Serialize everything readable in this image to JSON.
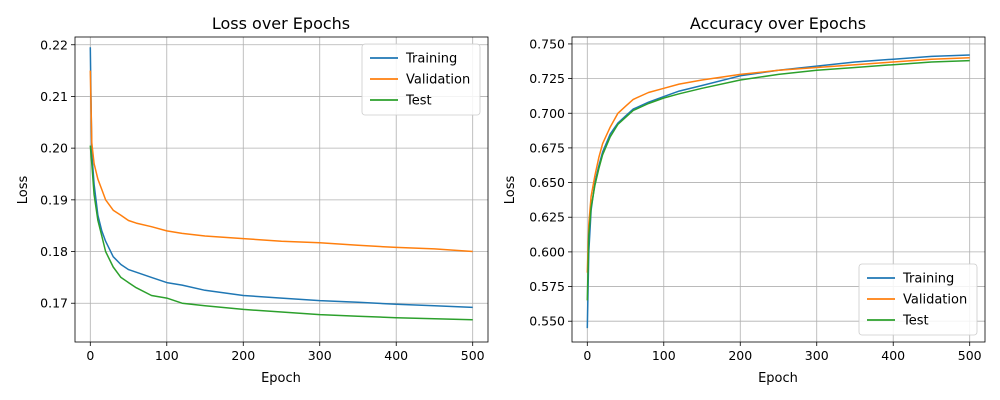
{
  "chart_data": [
    {
      "type": "line",
      "title": "Loss over Epochs",
      "xlabel": "Epoch",
      "ylabel": "Loss",
      "xlim": [
        -20,
        520
      ],
      "ylim": [
        0.1625,
        0.2215
      ],
      "xticks": [
        0,
        100,
        200,
        300,
        400,
        500
      ],
      "yticks": [
        0.17,
        0.18,
        0.19,
        0.2,
        0.21,
        0.22
      ],
      "ytick_labels": [
        "0.17",
        "0.18",
        "0.19",
        "0.20",
        "0.21",
        "0.22"
      ],
      "grid": true,
      "legend_position": "top-right",
      "series": [
        {
          "name": "Training",
          "color": "#1f77b4",
          "x": [
            0,
            2,
            5,
            10,
            15,
            20,
            30,
            40,
            50,
            60,
            80,
            100,
            120,
            150,
            200,
            250,
            300,
            350,
            400,
            450,
            500
          ],
          "values": [
            0.2195,
            0.199,
            0.193,
            0.187,
            0.184,
            0.182,
            0.179,
            0.1775,
            0.1765,
            0.176,
            0.175,
            0.174,
            0.1735,
            0.1725,
            0.1715,
            0.171,
            0.1705,
            0.1702,
            0.1698,
            0.1695,
            0.1692
          ]
        },
        {
          "name": "Validation",
          "color": "#ff7f0e",
          "x": [
            0,
            2,
            5,
            10,
            15,
            20,
            30,
            40,
            50,
            60,
            80,
            100,
            120,
            150,
            200,
            250,
            300,
            350,
            400,
            450,
            500
          ],
          "values": [
            0.215,
            0.201,
            0.197,
            0.194,
            0.192,
            0.19,
            0.188,
            0.187,
            0.186,
            0.1855,
            0.1848,
            0.184,
            0.1835,
            0.183,
            0.1825,
            0.182,
            0.1817,
            0.1812,
            0.1808,
            0.1805,
            0.18
          ]
        },
        {
          "name": "Test",
          "color": "#2ca02c",
          "x": [
            0,
            2,
            5,
            10,
            15,
            20,
            30,
            40,
            50,
            60,
            80,
            100,
            120,
            150,
            200,
            250,
            300,
            350,
            400,
            450,
            500
          ],
          "values": [
            0.2005,
            0.197,
            0.191,
            0.186,
            0.183,
            0.18,
            0.177,
            0.175,
            0.174,
            0.173,
            0.1715,
            0.171,
            0.17,
            0.1695,
            0.1688,
            0.1683,
            0.1678,
            0.1675,
            0.1672,
            0.167,
            0.1668
          ]
        }
      ]
    },
    {
      "type": "line",
      "title": "Accuracy over Epochs",
      "xlabel": "Epoch",
      "ylabel": "Loss",
      "xlim": [
        -20,
        520
      ],
      "ylim": [
        0.535,
        0.755
      ],
      "xticks": [
        0,
        100,
        200,
        300,
        400,
        500
      ],
      "yticks": [
        0.55,
        0.575,
        0.6,
        0.625,
        0.65,
        0.675,
        0.7,
        0.725,
        0.75
      ],
      "ytick_labels": [
        "0.550",
        "0.575",
        "0.600",
        "0.625",
        "0.650",
        "0.675",
        "0.700",
        "0.725",
        "0.750"
      ],
      "grid": true,
      "legend_position": "bottom-right",
      "series": [
        {
          "name": "Training",
          "color": "#1f77b4",
          "x": [
            0,
            2,
            5,
            10,
            15,
            20,
            30,
            40,
            50,
            60,
            80,
            100,
            120,
            150,
            200,
            250,
            300,
            350,
            400,
            450,
            500
          ],
          "values": [
            0.545,
            0.6,
            0.63,
            0.65,
            0.662,
            0.672,
            0.685,
            0.693,
            0.698,
            0.703,
            0.708,
            0.712,
            0.716,
            0.72,
            0.727,
            0.731,
            0.734,
            0.737,
            0.739,
            0.741,
            0.742
          ]
        },
        {
          "name": "Validation",
          "color": "#ff7f0e",
          "x": [
            0,
            2,
            5,
            10,
            15,
            20,
            30,
            40,
            50,
            60,
            80,
            100,
            120,
            150,
            200,
            250,
            300,
            350,
            400,
            450,
            500
          ],
          "values": [
            0.585,
            0.62,
            0.64,
            0.655,
            0.668,
            0.678,
            0.69,
            0.7,
            0.705,
            0.71,
            0.715,
            0.718,
            0.721,
            0.724,
            0.728,
            0.731,
            0.733,
            0.735,
            0.737,
            0.739,
            0.74
          ]
        },
        {
          "name": "Test",
          "color": "#2ca02c",
          "x": [
            0,
            2,
            5,
            10,
            15,
            20,
            30,
            40,
            50,
            60,
            80,
            100,
            120,
            150,
            200,
            250,
            300,
            350,
            400,
            450,
            500
          ],
          "values": [
            0.565,
            0.612,
            0.632,
            0.648,
            0.66,
            0.67,
            0.683,
            0.692,
            0.697,
            0.702,
            0.707,
            0.711,
            0.714,
            0.718,
            0.724,
            0.728,
            0.731,
            0.733,
            0.735,
            0.737,
            0.738
          ]
        }
      ]
    }
  ]
}
